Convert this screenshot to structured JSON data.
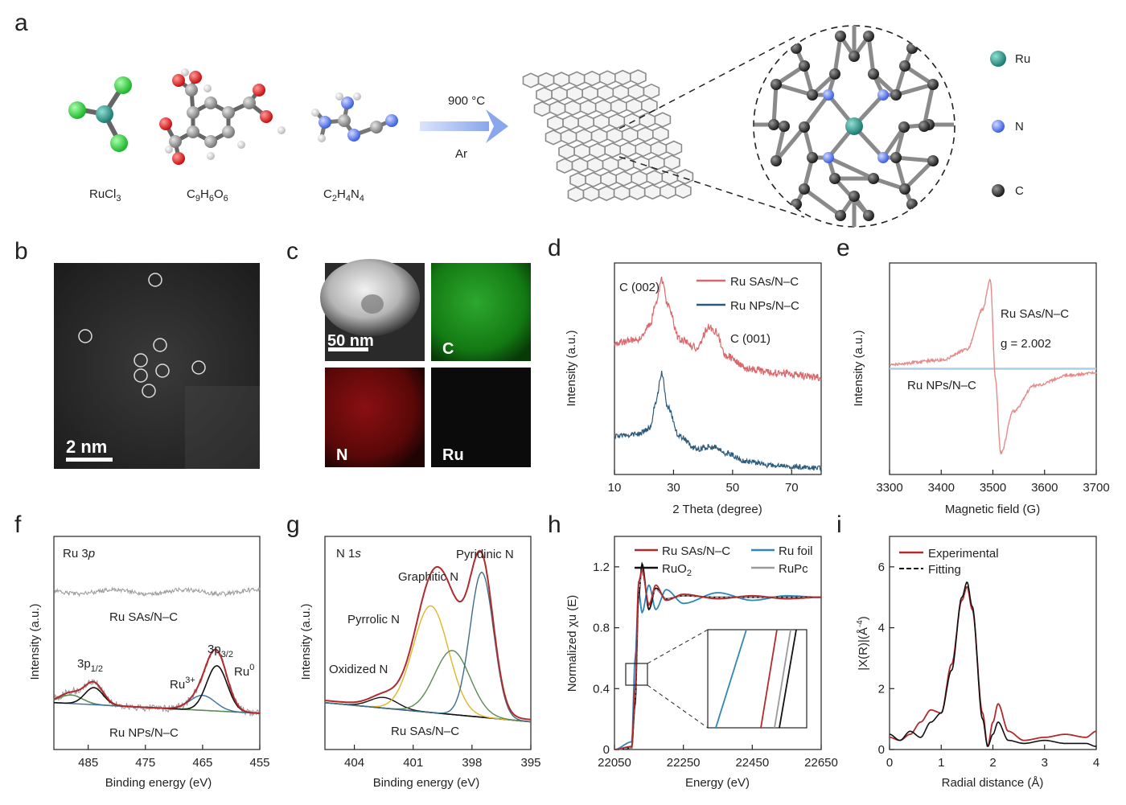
{
  "panels": {
    "a": {
      "letter": "a",
      "molecules": [
        "RuCl",
        "3",
        "C",
        "9",
        "H",
        "6",
        "O",
        "6",
        "C",
        "2",
        "H",
        "4",
        "N",
        "4"
      ],
      "arrow_top": "900 °C",
      "arrow_bottom": "Ar",
      "legend": [
        "Ru",
        "N",
        "C"
      ],
      "colors": {
        "Ru": "#2a8f86",
        "N": "#5b7ff0",
        "C": "#3a3a3a",
        "Cl": "#3fd64a",
        "O": "#e02020"
      }
    },
    "b": {
      "letter": "b",
      "scale": "2 nm"
    },
    "c": {
      "letter": "c",
      "scale": "50 nm",
      "tiles": [
        "C",
        "N",
        "Ru"
      ]
    },
    "d": {
      "letter": "d",
      "ylabel": "Intensity (a.u.)",
      "xlabel": "2 Theta (degree)",
      "xticks": [
        "10",
        "30",
        "50",
        "70"
      ],
      "legend": [
        "Ru SAs/N–C",
        "Ru NPs/N–C"
      ],
      "annotations": [
        "C (002)",
        "C (001)"
      ]
    },
    "e": {
      "letter": "e",
      "ylabel": "Intensity (a.u.)",
      "xlabel": "Magnetic field (G)",
      "xticks": [
        "3300",
        "3400",
        "3500",
        "3600",
        "3700"
      ],
      "labels": [
        "Ru SAs/N–C",
        "g = 2.002",
        "Ru NPs/N–C"
      ]
    },
    "f": {
      "letter": "f",
      "title": "Ru 3",
      "title_italic": "p",
      "ylabel": "Intensity (a.u.)",
      "xlabel": "Binding energy (eV)",
      "xticks": [
        "485",
        "475",
        "465",
        "455"
      ],
      "labels": [
        "Ru SAs/N–C",
        "Ru NPs/N–C",
        "3+",
        "0"
      ],
      "peaks": [
        "3p",
        "1/2",
        "3p",
        "3/2"
      ]
    },
    "g": {
      "letter": "g",
      "title": "N 1",
      "title_italic": "s",
      "ylabel": "Intensity (a.u.)",
      "xlabel": "Binding energy (eV)",
      "xticks": [
        "404",
        "401",
        "398",
        "395"
      ],
      "labels": [
        "Pyridinic N",
        "Graphitic N",
        "Pyrrolic N",
        "Oxidized N",
        "Ru SAs/N–C"
      ]
    },
    "h": {
      "letter": "h",
      "ylabel": "Normalized χu (E)",
      "xlabel": "Energy (eV)",
      "xticks": [
        "22050",
        "22250",
        "22450",
        "22650"
      ],
      "yticks": [
        "0",
        "0.4",
        "0.8",
        "1.2"
      ],
      "legend": [
        "Ru SAs/N–C",
        "Ru foil",
        "RuO",
        "2",
        "RuPc"
      ]
    },
    "i": {
      "letter": "i",
      "ylabel": "|X(R)|(Å",
      "ylabel_sup": "-4",
      "xlabel": "Radial distance (Å)",
      "xticks": [
        "0",
        "1",
        "2",
        "3",
        "4"
      ],
      "yticks": [
        "0",
        "2",
        "4",
        "6"
      ],
      "legend": [
        "Experimental",
        "Fitting"
      ]
    }
  },
  "series_colors": {
    "ru_sas": "#d9686c",
    "ru_nps": "#2d5a7b",
    "epr_sas": "#e58b8b",
    "epr_nps": "#a8cfe8",
    "dark_red": "#b02a2e",
    "black": "#111111",
    "blue": "#2f86b8",
    "gray": "#9a9a9a",
    "yellow": "#e1b52a",
    "green": "#5c8a55",
    "teal": "#3b6e86"
  },
  "chart_data": [
    {
      "type": "line",
      "panel": "d",
      "xlabel": "2 Theta (degree)",
      "ylabel": "Intensity (a.u.)",
      "xlim": [
        10,
        80
      ],
      "series": [
        {
          "name": "Ru SAs/N–C",
          "x": [
            10,
            18,
            22,
            24,
            26,
            28,
            32,
            38,
            42,
            44,
            48,
            55,
            65,
            80
          ],
          "y": [
            0.62,
            0.64,
            0.7,
            0.82,
            0.92,
            0.8,
            0.64,
            0.6,
            0.7,
            0.68,
            0.56,
            0.5,
            0.48,
            0.46
          ]
        },
        {
          "name": "Ru NPs/N–C",
          "x": [
            10,
            18,
            22,
            24,
            26,
            28,
            32,
            38,
            42,
            44,
            48,
            55,
            65,
            80
          ],
          "y": [
            0.18,
            0.19,
            0.22,
            0.34,
            0.48,
            0.32,
            0.18,
            0.12,
            0.13,
            0.13,
            0.1,
            0.06,
            0.04,
            0.03
          ]
        }
      ]
    },
    {
      "type": "line",
      "panel": "e",
      "xlabel": "Magnetic field (G)",
      "ylabel": "Intensity (a.u.)",
      "xlim": [
        3300,
        3700
      ],
      "series": [
        {
          "name": "Ru SAs/N–C",
          "x": [
            3300,
            3400,
            3450,
            3480,
            3495,
            3505,
            3515,
            3540,
            3580,
            3650,
            3700
          ],
          "y": [
            0.02,
            0.04,
            0.09,
            0.28,
            0.42,
            -0.05,
            -0.4,
            -0.2,
            -0.08,
            -0.03,
            -0.02
          ]
        },
        {
          "name": "Ru NPs/N–C",
          "x": [
            3300,
            3700
          ],
          "y": [
            0,
            0
          ]
        }
      ]
    },
    {
      "type": "line",
      "panel": "h",
      "xlabel": "Energy (eV)",
      "ylabel": "Normalized χu (E)",
      "xlim": [
        22050,
        22650
      ],
      "ylim": [
        0,
        1.4
      ],
      "series": [
        {
          "name": "Ru SAs/N–C",
          "x": [
            22050,
            22100,
            22110,
            22120,
            22130,
            22150,
            22170,
            22200,
            22250,
            22350,
            22450,
            22550,
            22650
          ],
          "y": [
            0,
            0.02,
            0.4,
            1.1,
            1.18,
            0.95,
            1.08,
            0.98,
            1.02,
            0.99,
            1.01,
            0.99,
            1.0
          ]
        },
        {
          "name": "Ru foil",
          "x": [
            22050,
            22100,
            22110,
            22120,
            22130,
            22150,
            22170,
            22200,
            22250,
            22350,
            22450,
            22550,
            22650
          ],
          "y": [
            0,
            0.05,
            0.6,
            1.05,
            0.9,
            1.08,
            0.92,
            1.05,
            0.96,
            1.03,
            0.98,
            1.01,
            1.0
          ]
        },
        {
          "name": "RuO2",
          "x": [
            22050,
            22100,
            22110,
            22120,
            22130,
            22150,
            22170,
            22200,
            22250,
            22350,
            22450,
            22550,
            22650
          ],
          "y": [
            0,
            0.01,
            0.3,
            1.0,
            1.22,
            0.92,
            1.06,
            0.99,
            1.01,
            1.0,
            1.0,
            1.0,
            1.0
          ]
        },
        {
          "name": "RuPc",
          "x": [
            22050,
            22100,
            22110,
            22120,
            22130,
            22150,
            22170,
            22200,
            22250,
            22350,
            22450,
            22550,
            22650
          ],
          "y": [
            0,
            0.01,
            0.35,
            1.05,
            1.16,
            0.96,
            1.05,
            0.99,
            1.01,
            1.0,
            1.0,
            1.0,
            1.0
          ]
        }
      ]
    },
    {
      "type": "line",
      "panel": "i",
      "xlabel": "Radial distance (Å)",
      "ylabel": "|X(R)|(Å-4)",
      "xlim": [
        0,
        4
      ],
      "ylim": [
        0,
        7
      ],
      "series": [
        {
          "name": "Experimental",
          "x": [
            0,
            0.2,
            0.4,
            0.6,
            0.8,
            1.0,
            1.2,
            1.4,
            1.5,
            1.6,
            1.8,
            1.9,
            2.0,
            2.1,
            2.3,
            2.6,
            3.0,
            3.4,
            3.8,
            4.0
          ],
          "y": [
            0.4,
            0.3,
            0.5,
            0.9,
            1.3,
            1.2,
            2.8,
            4.9,
            5.35,
            4.6,
            1.2,
            0.1,
            0.9,
            1.5,
            0.6,
            0.3,
            0.4,
            0.5,
            0.4,
            0.6
          ]
        },
        {
          "name": "Fitting",
          "x": [
            0,
            0.2,
            0.4,
            0.6,
            0.8,
            1.0,
            1.2,
            1.4,
            1.5,
            1.6,
            1.8,
            1.9,
            2.0,
            2.1,
            2.3,
            2.6,
            3.0,
            3.4,
            3.8,
            4.0
          ],
          "y": [
            0.5,
            0.3,
            0.6,
            0.4,
            0.9,
            1.2,
            2.6,
            5.0,
            5.5,
            4.7,
            1.0,
            0.1,
            0.5,
            0.9,
            0.3,
            0.2,
            0.3,
            0.2,
            0.2,
            0.1
          ]
        }
      ]
    }
  ]
}
